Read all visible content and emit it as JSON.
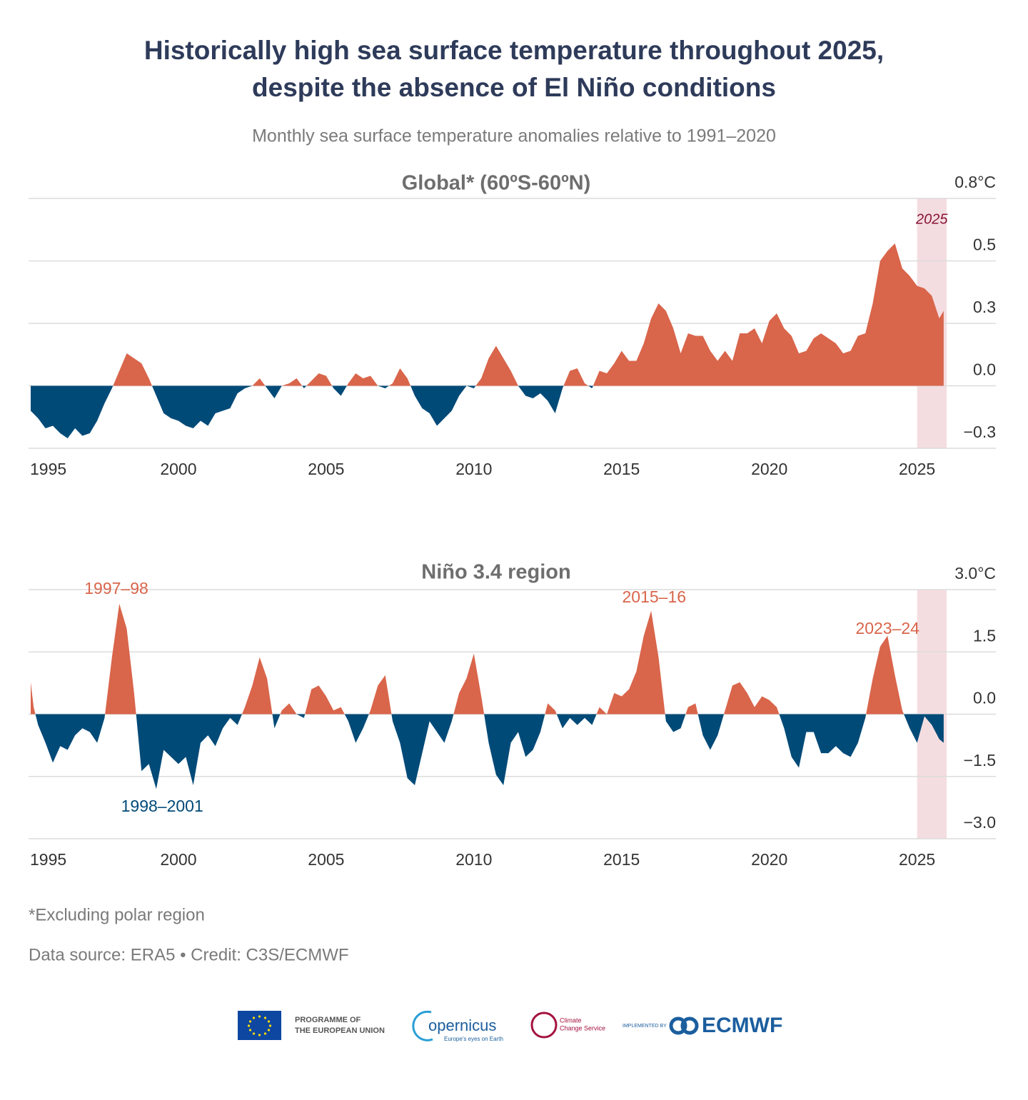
{
  "title": [
    "Historically high sea surface temperature throughout 2025,",
    "despite the absence of El Niño conditions"
  ],
  "subtitle": "Monthly sea surface temperature anomalies relative to 1991–2020",
  "footnote": "*Excluding polar region",
  "source": "Data source: ERA5 • Credit: C3S/ECMWF",
  "logos": {
    "eu": [
      "PROGRAMME OF",
      "THE EUROPEAN UNION"
    ],
    "copernicus": "opernicus",
    "copernicus_tagline": "Europe's eyes on Earth",
    "c3s": [
      "Climate",
      "Change Service"
    ],
    "implemented": "IMPLEMENTED BY",
    "ecmwf": "ECMWF"
  },
  "chart_data": [
    {
      "type": "area",
      "title": "Global* (60ºS-60ºN)",
      "x": [
        1995.0,
        1995.25,
        1995.5,
        1995.75,
        1996.0,
        1996.25,
        1996.5,
        1996.75,
        1997.0,
        1997.25,
        1997.5,
        1997.75,
        1998.0,
        1998.25,
        1998.5,
        1998.75,
        1999.0,
        1999.25,
        1999.5,
        1999.75,
        2000.0,
        2000.25,
        2000.5,
        2000.75,
        2001.0,
        2001.25,
        2001.5,
        2001.75,
        2002.0,
        2002.25,
        2002.5,
        2002.75,
        2003.0,
        2003.25,
        2003.5,
        2003.75,
        2004.0,
        2004.25,
        2004.5,
        2004.75,
        2005.0,
        2005.25,
        2005.5,
        2005.75,
        2006.0,
        2006.25,
        2006.5,
        2006.75,
        2007.0,
        2007.25,
        2007.5,
        2007.75,
        2008.0,
        2008.25,
        2008.5,
        2008.75,
        2009.0,
        2009.25,
        2009.5,
        2009.75,
        2010.0,
        2010.25,
        2010.5,
        2010.75,
        2011.0,
        2011.25,
        2011.5,
        2011.75,
        2012.0,
        2012.25,
        2012.5,
        2012.75,
        2013.0,
        2013.25,
        2013.5,
        2013.75,
        2014.0,
        2014.25,
        2014.5,
        2014.75,
        2015.0,
        2015.25,
        2015.5,
        2015.75,
        2016.0,
        2016.25,
        2016.5,
        2016.75,
        2017.0,
        2017.25,
        2017.5,
        2017.75,
        2018.0,
        2018.25,
        2018.5,
        2018.75,
        2019.0,
        2019.25,
        2019.5,
        2019.75,
        2020.0,
        2020.25,
        2020.5,
        2020.75,
        2021.0,
        2021.25,
        2021.5,
        2021.75,
        2022.0,
        2022.25,
        2022.5,
        2022.75,
        2023.0,
        2023.25,
        2023.5,
        2023.75,
        2024.0,
        2024.25,
        2024.5,
        2024.75,
        2025.0,
        2025.25,
        2025.5,
        2025.75,
        2025.9
      ],
      "values": [
        -0.1,
        -0.13,
        -0.17,
        -0.16,
        -0.19,
        -0.21,
        -0.17,
        -0.2,
        -0.19,
        -0.14,
        -0.07,
        -0.01,
        0.06,
        0.13,
        0.11,
        0.09,
        0.03,
        -0.04,
        -0.11,
        -0.13,
        -0.14,
        -0.16,
        -0.17,
        -0.14,
        -0.16,
        -0.11,
        -0.1,
        -0.09,
        -0.03,
        -0.01,
        0,
        0.03,
        -0.01,
        -0.05,
        0,
        0.01,
        0.03,
        -0.01,
        0.02,
        0.05,
        0.04,
        -0.01,
        -0.04,
        0.01,
        0.05,
        0.03,
        0.04,
        0,
        -0.01,
        0.01,
        0.07,
        0.03,
        -0.04,
        -0.09,
        -0.11,
        -0.16,
        -0.13,
        -0.1,
        -0.04,
        0,
        -0.01,
        0.03,
        0.11,
        0.16,
        0.11,
        0.06,
        0,
        -0.04,
        -0.05,
        -0.03,
        -0.06,
        -0.11,
        -0.01,
        0.06,
        0.07,
        0.01,
        -0.01,
        0.06,
        0.05,
        0.09,
        0.14,
        0.1,
        0.1,
        0.17,
        0.27,
        0.33,
        0.3,
        0.23,
        0.13,
        0.21,
        0.2,
        0.2,
        0.14,
        0.1,
        0.14,
        0.1,
        0.21,
        0.21,
        0.23,
        0.17,
        0.26,
        0.29,
        0.23,
        0.2,
        0.13,
        0.14,
        0.19,
        0.21,
        0.19,
        0.17,
        0.13,
        0.14,
        0.2,
        0.21,
        0.33,
        0.5,
        0.54,
        0.57,
        0.47,
        0.44,
        0.4,
        0.39,
        0.36,
        0.27,
        0.3
      ],
      "positive_color": "#d9654b",
      "negative_color": "#004a78",
      "xlim": [
        1995,
        2026
      ],
      "ylim": [
        -0.25,
        0.75
      ],
      "xticks": [
        1995,
        2000,
        2005,
        2010,
        2015,
        2020,
        2025
      ],
      "yticks": [
        {
          "value": 0.75,
          "label": "0.8°C"
        },
        0.5,
        {
          "value": 0.25,
          "label": "0.3"
        },
        {
          "value": 0,
          "label": "0.0"
        },
        {
          "value": -0.25,
          "label": "−0.3"
        }
      ],
      "grid": true,
      "highlight_x": [
        2025,
        2026
      ],
      "highlight_color": "#f4dde0",
      "highlight_label": "2025",
      "highlight_label_color": "#8a1538",
      "annotations": []
    },
    {
      "type": "area",
      "title": "Niño 3.4 region",
      "x": [
        1995.0,
        1995.1,
        1995.25,
        1995.5,
        1995.75,
        1996.0,
        1996.25,
        1996.5,
        1996.75,
        1997.0,
        1997.25,
        1997.5,
        1997.75,
        1998.0,
        1998.25,
        1998.5,
        1998.75,
        1999.0,
        1999.25,
        1999.5,
        1999.75,
        2000.0,
        2000.25,
        2000.5,
        2000.75,
        2001.0,
        2001.25,
        2001.5,
        2001.75,
        2002.0,
        2002.25,
        2002.5,
        2002.75,
        2003.0,
        2003.25,
        2003.5,
        2003.75,
        2004.0,
        2004.25,
        2004.5,
        2004.75,
        2005.0,
        2005.25,
        2005.5,
        2005.75,
        2006.0,
        2006.25,
        2006.5,
        2006.75,
        2007.0,
        2007.25,
        2007.5,
        2007.75,
        2008.0,
        2008.25,
        2008.5,
        2008.75,
        2009.0,
        2009.25,
        2009.5,
        2009.75,
        2010.0,
        2010.25,
        2010.5,
        2010.75,
        2011.0,
        2011.25,
        2011.5,
        2011.75,
        2012.0,
        2012.25,
        2012.5,
        2012.75,
        2013.0,
        2013.25,
        2013.5,
        2013.75,
        2014.0,
        2014.25,
        2014.5,
        2014.75,
        2015.0,
        2015.25,
        2015.5,
        2015.75,
        2016.0,
        2016.25,
        2016.5,
        2016.75,
        2017.0,
        2017.25,
        2017.5,
        2017.75,
        2018.0,
        2018.25,
        2018.5,
        2018.75,
        2019.0,
        2019.25,
        2019.5,
        2019.75,
        2020.0,
        2020.25,
        2020.5,
        2020.75,
        2021.0,
        2021.25,
        2021.5,
        2021.75,
        2022.0,
        2022.25,
        2022.5,
        2022.75,
        2023.0,
        2023.25,
        2023.5,
        2023.75,
        2024.0,
        2024.25,
        2024.5,
        2024.75,
        2025.0,
        2025.25,
        2025.5,
        2025.75,
        2025.9
      ],
      "values": [
        0.77,
        0.17,
        -0.26,
        -0.69,
        -1.17,
        -0.77,
        -0.86,
        -0.51,
        -0.34,
        -0.43,
        -0.69,
        -0.09,
        1.37,
        2.66,
        2.06,
        0.51,
        -1.37,
        -1.2,
        -1.8,
        -0.86,
        -1.03,
        -1.2,
        -1.03,
        -1.71,
        -0.69,
        -0.51,
        -0.77,
        -0.34,
        -0.09,
        -0.26,
        0.17,
        0.69,
        1.37,
        0.86,
        -0.34,
        0.09,
        0.26,
        0,
        -0.09,
        0.6,
        0.69,
        0.43,
        0.09,
        0.17,
        -0.17,
        -0.69,
        -0.34,
        0.09,
        0.69,
        0.94,
        -0.17,
        -0.69,
        -1.54,
        -1.71,
        -0.94,
        -0.17,
        -0.43,
        -0.69,
        -0.17,
        0.51,
        0.86,
        1.46,
        0.43,
        -0.69,
        -1.46,
        -1.71,
        -0.69,
        -0.43,
        -1.03,
        -0.86,
        -0.43,
        0.26,
        0.09,
        -0.34,
        -0.09,
        -0.26,
        -0.09,
        -0.26,
        0.17,
        0,
        0.51,
        0.43,
        0.6,
        1.03,
        1.89,
        2.49,
        1.37,
        -0.17,
        -0.43,
        -0.34,
        0.17,
        0.26,
        -0.51,
        -0.86,
        -0.51,
        0.09,
        0.69,
        0.77,
        0.51,
        0.17,
        0.43,
        0.34,
        0.17,
        -0.34,
        -1.03,
        -1.29,
        -0.43,
        -0.43,
        -0.94,
        -0.94,
        -0.77,
        -0.94,
        -1.03,
        -0.69,
        -0.09,
        0.86,
        1.63,
        1.89,
        0.94,
        0.09,
        -0.34,
        -0.69,
        -0.05,
        -0.26,
        -0.6,
        -0.69
      ],
      "positive_color": "#d9654b",
      "negative_color": "#004a78",
      "xlim": [
        1995,
        2026
      ],
      "ylim": [
        -3,
        3
      ],
      "xticks": [
        1995,
        2000,
        2005,
        2010,
        2015,
        2020,
        2025
      ],
      "yticks": [
        {
          "value": 3,
          "label": "3.0°C"
        },
        1.5,
        {
          "value": 0,
          "label": "0.0"
        },
        {
          "value": -1.5,
          "label": "−1.5"
        },
        {
          "value": -3,
          "label": "−3.0"
        }
      ],
      "grid": true,
      "highlight_x": [
        2025,
        2026
      ],
      "highlight_color": "#f4dde0",
      "annotations": [
        {
          "text": "1997–98",
          "color": "#d9654b"
        },
        {
          "text": "1998–2001",
          "color": "#004a78"
        },
        {
          "text": "2015–16",
          "color": "#d9654b"
        },
        {
          "text": "2023–24",
          "color": "#d9654b"
        }
      ]
    }
  ]
}
